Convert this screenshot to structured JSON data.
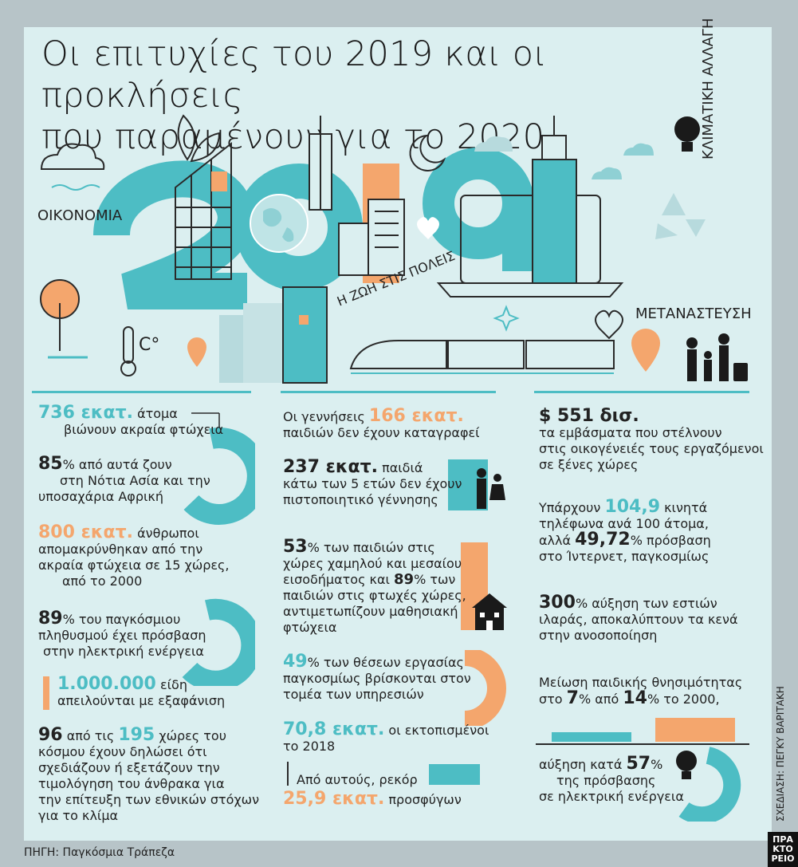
{
  "title": {
    "line1": "Οι επιτυχίες του 2019 και οι προκλήσεις",
    "line2": "που παραμένουν για το 2020"
  },
  "topics": {
    "economy": "ΟΙΚΟΝΟΜΙΑ",
    "climate": "ΚΛΙΜΑΤΙΚΗ ΑΛΛΑΓΗ",
    "city_life": "Η ΖΩΗ ΣΤΙΣ ΠΟΛΕΙΣ",
    "migration": "ΜΕΤΑΝΑΣΤΕΥΣΗ",
    "year": "2019",
    "celsius": "C°"
  },
  "col1": {
    "s1_num": "736 εκατ.",
    "s1_a": "άτομα",
    "s1_b": "βιώνουν ακραία φτώχεια",
    "s2_num": "85",
    "s2_a": "% από αυτά ζουν",
    "s2_b": "στη Νότια Ασία και την",
    "s2_c": "υποσαχάρια Αφρική",
    "s3_num": "800 εκατ.",
    "s3_a": "άνθρωποι",
    "s3_b": "απομακρύνθηκαν από την",
    "s3_c": "ακραία φτώχεια σε 15 χώρες,",
    "s3_d": "από το 2000",
    "s4_num": "89",
    "s4_a": "% του παγκόσμιου",
    "s4_b": "πληθυσμού έχει πρόσβαση",
    "s4_c": "στην ηλεκτρική ενέργεια",
    "s5_num": "1.000.000",
    "s5_a": "είδη",
    "s5_b": "απειλούνται με εξαφάνιση",
    "s6_num1": "96",
    "s6_a": "από τις",
    "s6_num2": "195",
    "s6_b": "χώρες του",
    "s6_c": "κόσμου έχουν δηλώσει ότι",
    "s6_d": "σχεδιάζουν ή εξετάζουν την",
    "s6_e": "τιμολόγηση του άνθρακα για",
    "s6_f": "την επίτευξη των εθνικών στόχων",
    "s6_g": "για το κλίμα"
  },
  "col2": {
    "s1_a": "Οι γεννήσεις",
    "s1_num": "166 εκατ.",
    "s1_b": "παιδιών δεν έχουν καταγραφεί",
    "s2_num": "237 εκατ.",
    "s2_a": "παιδιά",
    "s2_b": "κάτω των 5 ετών δεν έχουν",
    "s2_c": "πιστοποιητικό γέννησης",
    "s3_num1": "53",
    "s3_a": "% των παιδιών στις",
    "s3_b": "χώρες χαμηλού και μεσαίου",
    "s3_c": "εισοδήματος και",
    "s3_num2": "89",
    "s3_d": "% των",
    "s3_e": "παιδιών στις φτωχές χώρες,",
    "s3_f": "αντιμετωπίζουν μαθησιακή",
    "s3_g": "φτώχεια",
    "s4_num": "49",
    "s4_a": "% των θέσεων εργασίας",
    "s4_b": "παγκοσμίως βρίσκονται στον",
    "s4_c": "τομέα των υπηρεσιών",
    "s5_num": "70,8 εκατ.",
    "s5_a": "οι εκτοπισμένοι",
    "s5_b": "το 2018",
    "s6_a": "Από αυτούς, ρεκόρ",
    "s6_num": "25,9 εκατ.",
    "s6_b": "προσφύγων"
  },
  "col3": {
    "s1_num": "$ 551 δισ.",
    "s1_a": "τα εμβάσματα που στέλνουν",
    "s1_b": "στις οικογένειές τους εργαζόμενοι",
    "s1_c": "σε ξένες χώρες",
    "s2_a": "Υπάρχουν",
    "s2_num1": "104,9",
    "s2_b": "κινητά",
    "s2_c": "τηλέφωνα ανά 100 άτομα,",
    "s2_d": "αλλά",
    "s2_num2": "49,72",
    "s2_e": "% πρόσβαση",
    "s2_f": "στο Ίντερνετ, παγκοσμίως",
    "s3_num": "300",
    "s3_a": "% αύξηση των εστιών",
    "s3_b": "ιλαράς, αποκαλύπτουν τα κενά",
    "s3_c": "στην ανοσοποίηση",
    "s4_a": "Μείωση παιδικής θνησιμότητας",
    "s4_b": "στο",
    "s4_num1": "7",
    "s4_c": "% από",
    "s4_num2": "14",
    "s4_d": "% το 2000,",
    "s5_a": "αύξηση κατά",
    "s5_num": "57",
    "s5_b": "%",
    "s5_c": "της πρόσβασης",
    "s5_d": "σε ηλεκτρική ενέργεια"
  },
  "footer": {
    "source": "ΠΗΓΗ: Παγκόσμια Τράπεζα",
    "design": "ΣΧΕΔΙΑΣΗ: ΠΕΓΚΥ ΒΑΡΙΤΑΚΗ",
    "logo_l1": "ΠΡΑ",
    "logo_l2": "ΚΤΟ",
    "logo_l3": "ΡΕΙΟ"
  },
  "colors": {
    "teal": "#4dbdc4",
    "orange": "#f4a66d",
    "background": "#dbeff0",
    "frame": "#b7c4c8"
  },
  "icons": [
    "cloud-icon",
    "leaf-icon",
    "moon-icon",
    "lightbulb-icon",
    "recycle-icon",
    "globe-icon",
    "tree-icon",
    "thermometer-icon",
    "location-pin-icon",
    "heart-icon",
    "train-icon",
    "family-icon",
    "suitcase-icon",
    "children-icon",
    "school-icon",
    "sparkle-icon"
  ]
}
